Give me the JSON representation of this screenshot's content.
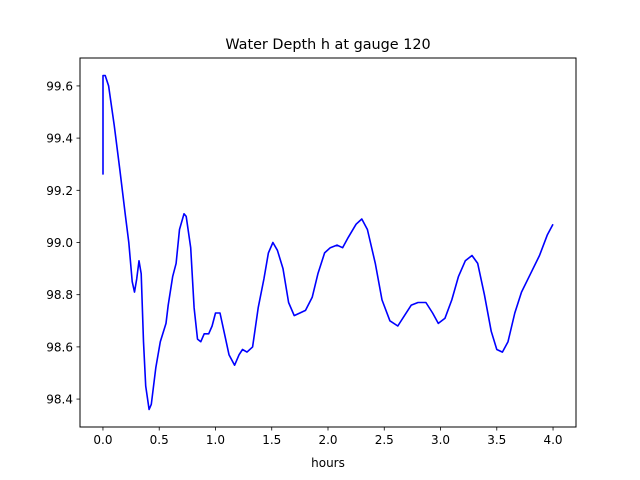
{
  "chart_data": {
    "type": "line",
    "title": "Water Depth h at gauge 120",
    "xlabel": "hours",
    "ylabel": "",
    "xlim": [
      -0.204,
      4.204
    ],
    "ylim": [
      98.293,
      99.707
    ],
    "xticks": [
      0.0,
      0.5,
      1.0,
      1.5,
      2.0,
      2.5,
      3.0,
      3.5,
      4.0
    ],
    "xtick_labels": [
      "0.0",
      "0.5",
      "1.0",
      "1.5",
      "2.0",
      "2.5",
      "3.0",
      "3.5",
      "4.0"
    ],
    "yticks": [
      98.4,
      98.6,
      98.8,
      99.0,
      99.2,
      99.4,
      99.6
    ],
    "ytick_labels": [
      "98.4",
      "98.6",
      "98.8",
      "99.0",
      "99.2",
      "99.4",
      "99.6"
    ],
    "grid": false,
    "series": [
      {
        "name": "h",
        "color": "#0000ff",
        "x": [
          0,
          0,
          0.02,
          0.05,
          0.1,
          0.15,
          0.2,
          0.23,
          0.26,
          0.28,
          0.3,
          0.32,
          0.34,
          0.36,
          0.38,
          0.41,
          0.43,
          0.47,
          0.51,
          0.56,
          0.58,
          0.62,
          0.65,
          0.68,
          0.72,
          0.74,
          0.78,
          0.81,
          0.84,
          0.87,
          0.9,
          0.94,
          0.97,
          1.0,
          1.04,
          1.08,
          1.12,
          1.17,
          1.21,
          1.24,
          1.28,
          1.33,
          1.38,
          1.43,
          1.47,
          1.51,
          1.55,
          1.6,
          1.65,
          1.7,
          1.75,
          1.8,
          1.86,
          1.91,
          1.97,
          2.02,
          2.08,
          2.13,
          2.18,
          2.25,
          2.3,
          2.35,
          2.42,
          2.48,
          2.55,
          2.62,
          2.68,
          2.74,
          2.8,
          2.87,
          2.93,
          2.98,
          3.04,
          3.1,
          3.16,
          3.22,
          3.28,
          3.33,
          3.39,
          3.45,
          3.5,
          3.55,
          3.6,
          3.66,
          3.72,
          3.8,
          3.88,
          3.95,
          4.0
        ],
        "y": [
          99.26,
          99.64,
          99.64,
          99.6,
          99.45,
          99.28,
          99.1,
          99.0,
          98.85,
          98.81,
          98.86,
          98.93,
          98.88,
          98.62,
          98.45,
          98.36,
          98.38,
          98.52,
          98.62,
          98.69,
          98.76,
          98.87,
          98.92,
          99.05,
          99.11,
          99.1,
          98.98,
          98.75,
          98.63,
          98.62,
          98.65,
          98.65,
          98.68,
          98.73,
          98.73,
          98.65,
          98.57,
          98.53,
          98.57,
          98.59,
          98.58,
          98.6,
          98.75,
          98.86,
          98.96,
          99.0,
          98.97,
          98.9,
          98.77,
          98.72,
          98.73,
          98.74,
          98.79,
          98.88,
          98.96,
          98.98,
          98.99,
          98.98,
          99.02,
          99.07,
          99.09,
          99.05,
          98.92,
          98.78,
          98.7,
          98.68,
          98.72,
          98.76,
          98.77,
          98.77,
          98.73,
          98.69,
          98.71,
          98.78,
          98.87,
          98.93,
          98.95,
          98.92,
          98.8,
          98.66,
          98.59,
          98.58,
          98.62,
          98.73,
          98.81,
          98.88,
          98.95,
          99.03,
          99.07
        ]
      }
    ]
  }
}
